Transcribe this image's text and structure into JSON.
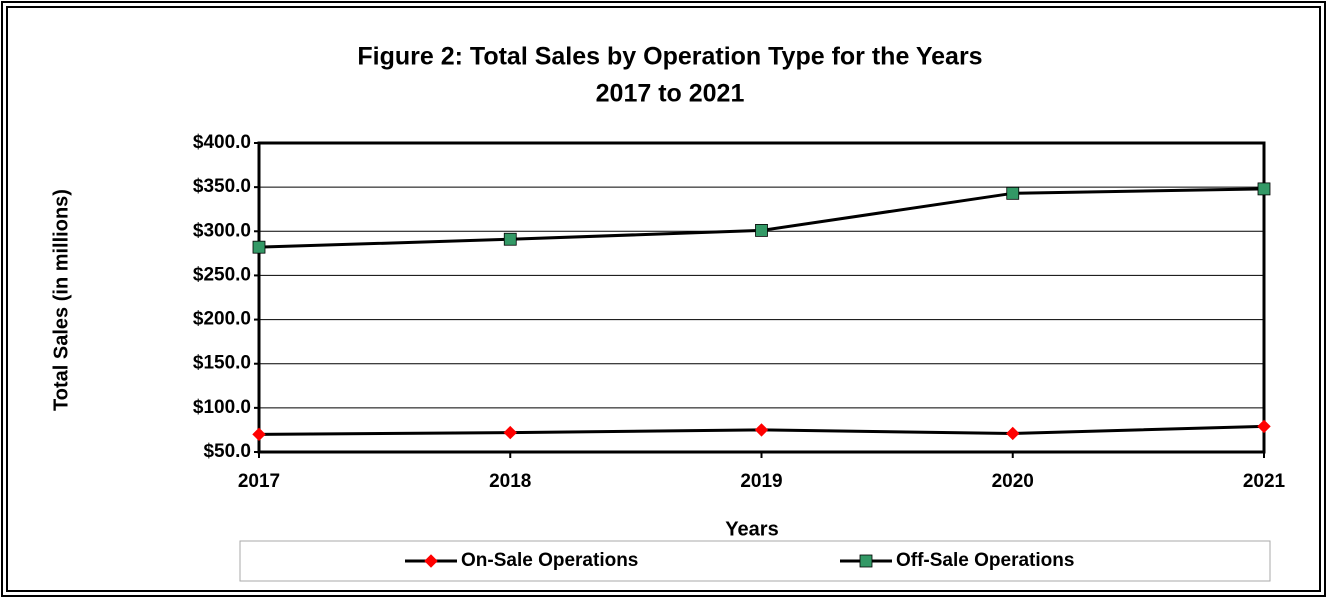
{
  "chart_data": {
    "type": "line",
    "title": "Figure 2:  Total Sales by Operation Type for the Years",
    "subtitle": "2017 to 2021",
    "x_label": "Years",
    "y_label": "Total Sales (in millions)",
    "categories": [
      "2017",
      "2018",
      "2019",
      "2020",
      "2021"
    ],
    "series": [
      {
        "name": "On-Sale Operations",
        "color": "#000000",
        "marker_color": "#ff0000",
        "marker": "diamond",
        "values": [
          70,
          72,
          75,
          71,
          79
        ]
      },
      {
        "name": "Off-Sale Operations",
        "color": "#000000",
        "marker_color": "#339966",
        "marker": "square",
        "values": [
          282,
          291,
          301,
          343,
          348
        ]
      }
    ],
    "ylim": [
      50,
      400
    ],
    "yticks": [
      {
        "value": 50,
        "label": "$50.0"
      },
      {
        "value": 100,
        "label": "$100.0"
      },
      {
        "value": 150,
        "label": "$150.0"
      },
      {
        "value": 200,
        "label": "$200.0"
      },
      {
        "value": 250,
        "label": "$250.0"
      },
      {
        "value": 300,
        "label": "$300.0"
      },
      {
        "value": 350,
        "label": "$350.0"
      },
      {
        "value": 400,
        "label": "$400.0"
      }
    ],
    "grid": true,
    "legend": "bottom"
  }
}
